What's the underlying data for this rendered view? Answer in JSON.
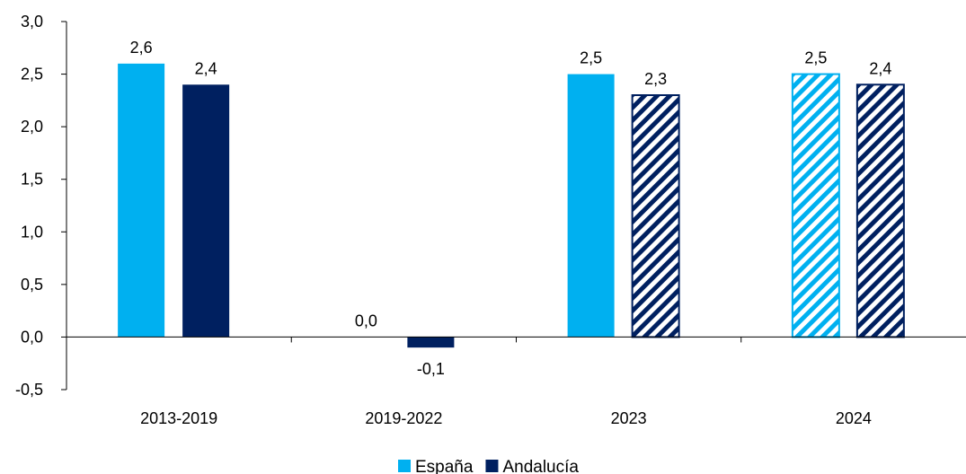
{
  "chart_data": {
    "type": "bar",
    "categories": [
      "2013-2019",
      "2019-2022",
      "2023",
      "2024"
    ],
    "series": [
      {
        "name": "España",
        "values": [
          2.6,
          0.0,
          2.5,
          2.5
        ],
        "labels": [
          "2,6",
          "0,0",
          "2,5",
          "2,5"
        ],
        "hatched": [
          false,
          false,
          false,
          true
        ],
        "color": "#00b0f0"
      },
      {
        "name": "Andalucía",
        "values": [
          2.4,
          -0.1,
          2.3,
          2.4
        ],
        "labels": [
          "2,4",
          "-0,1",
          "2,3",
          "2,4"
        ],
        "hatched": [
          false,
          false,
          true,
          true
        ],
        "color": "#002060"
      }
    ],
    "ylim": [
      -0.5,
      3.0
    ],
    "yticks": [
      -0.5,
      0.0,
      0.5,
      1.0,
      1.5,
      2.0,
      2.5,
      3.0
    ],
    "ytick_labels": [
      "-0,5",
      "0,0",
      "0,5",
      "1,0",
      "1,5",
      "2,0",
      "2,5",
      "3,0"
    ],
    "grid": false,
    "legend_position": "bottom-center"
  }
}
